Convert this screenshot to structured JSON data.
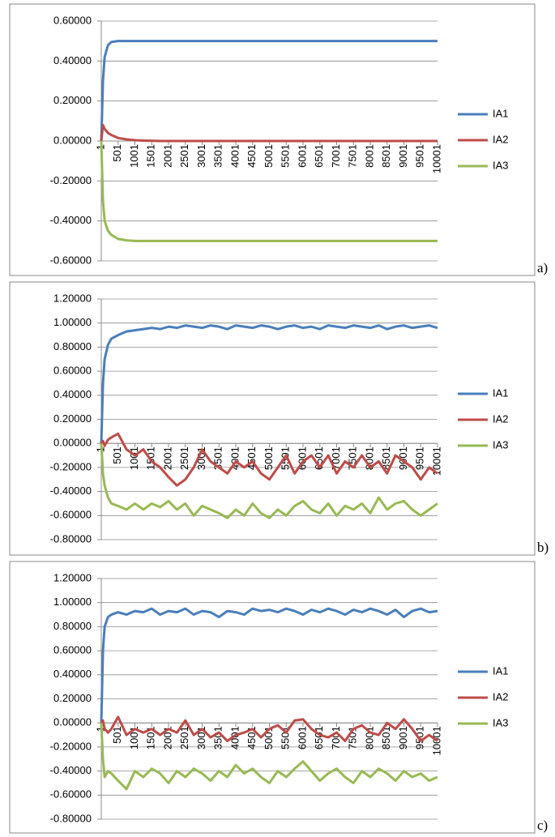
{
  "chart_data": [
    {
      "type": "line",
      "panel_label": "a)",
      "x": [
        1,
        51,
        101,
        201,
        301,
        501,
        751,
        1001,
        1251,
        1501,
        1751,
        2001,
        2251,
        2501,
        2751,
        3001,
        3251,
        3501,
        3751,
        4001,
        4251,
        4501,
        4751,
        5001,
        5251,
        5501,
        5751,
        6001,
        6251,
        6501,
        6751,
        7001,
        7251,
        7501,
        7751,
        8001,
        8251,
        8501,
        8751,
        9001,
        9251,
        9501,
        9751,
        10001
      ],
      "xlim": [
        1,
        10001
      ],
      "xticks": [
        1,
        501,
        1001,
        1501,
        2001,
        2501,
        3001,
        3501,
        4001,
        4501,
        5001,
        5501,
        6001,
        6501,
        7001,
        7501,
        8001,
        8501,
        9001,
        9501,
        10001
      ],
      "ylim": [
        -0.6,
        0.6
      ],
      "yticks": [
        {
          "value": -0.6,
          "label": "-0.60000"
        },
        {
          "value": -0.4,
          "label": "-0.40000"
        },
        {
          "value": -0.2,
          "label": "-0.20000"
        },
        {
          "value": 0,
          "label": "0.00000"
        },
        {
          "value": 0.2,
          "label": "0.20000"
        },
        {
          "value": 0.4,
          "label": "0.40000"
        },
        {
          "value": 0.6,
          "label": "0.60000"
        }
      ],
      "grid": true,
      "series": [
        {
          "name": "IA1",
          "color": "#4a7ebb",
          "values": [
            0,
            0.3,
            0.42,
            0.48,
            0.495,
            0.5,
            0.5,
            0.5,
            0.5,
            0.5,
            0.5,
            0.5,
            0.5,
            0.5,
            0.5,
            0.5,
            0.5,
            0.5,
            0.5,
            0.5,
            0.5,
            0.5,
            0.5,
            0.5,
            0.5,
            0.5,
            0.5,
            0.5,
            0.5,
            0.5,
            0.5,
            0.5,
            0.5,
            0.5,
            0.5,
            0.5,
            0.5,
            0.5,
            0.5,
            0.5,
            0.5,
            0.5,
            0.5,
            0.5
          ]
        },
        {
          "name": "IA2",
          "color": "#be4b48",
          "values": [
            0,
            0.08,
            0.06,
            0.04,
            0.03,
            0.015,
            0.008,
            0.004,
            0.002,
            0.001,
            0,
            0,
            0,
            0,
            0,
            0,
            0,
            0,
            0,
            0,
            0,
            0,
            0,
            0,
            0,
            0,
            0,
            0,
            0,
            0,
            0,
            0,
            0,
            0,
            0,
            0,
            0,
            0,
            0,
            0,
            0,
            0,
            0,
            0
          ]
        },
        {
          "name": "IA3",
          "color": "#98b954",
          "values": [
            0,
            -0.3,
            -0.4,
            -0.45,
            -0.47,
            -0.49,
            -0.497,
            -0.5,
            -0.5,
            -0.5,
            -0.5,
            -0.5,
            -0.5,
            -0.5,
            -0.5,
            -0.5,
            -0.5,
            -0.5,
            -0.5,
            -0.5,
            -0.5,
            -0.5,
            -0.5,
            -0.5,
            -0.5,
            -0.5,
            -0.5,
            -0.5,
            -0.5,
            -0.5,
            -0.5,
            -0.5,
            -0.5,
            -0.5,
            -0.5,
            -0.5,
            -0.5,
            -0.5,
            -0.5,
            -0.5,
            -0.5,
            -0.5,
            -0.5,
            -0.5
          ]
        }
      ]
    },
    {
      "type": "line",
      "panel_label": "b)",
      "x": [
        1,
        51,
        101,
        201,
        301,
        501,
        751,
        1001,
        1251,
        1501,
        1751,
        2001,
        2251,
        2501,
        2751,
        3001,
        3251,
        3501,
        3751,
        4001,
        4251,
        4501,
        4751,
        5001,
        5251,
        5501,
        5751,
        6001,
        6251,
        6501,
        6751,
        7001,
        7251,
        7501,
        7751,
        8001,
        8251,
        8501,
        8751,
        9001,
        9251,
        9501,
        9751,
        10001
      ],
      "xlim": [
        1,
        10001
      ],
      "xticks": [
        1,
        501,
        1001,
        1501,
        2001,
        2501,
        3001,
        3501,
        4001,
        4501,
        5001,
        5501,
        6001,
        6501,
        7001,
        7501,
        8001,
        8501,
        9001,
        9501,
        10001
      ],
      "ylim": [
        -0.8,
        1.2
      ],
      "yticks": [
        {
          "value": -0.8,
          "label": "-0.80000"
        },
        {
          "value": -0.6,
          "label": "-0.60000"
        },
        {
          "value": -0.4,
          "label": "-0.40000"
        },
        {
          "value": -0.2,
          "label": "-0.20000"
        },
        {
          "value": 0,
          "label": "0.00000"
        },
        {
          "value": 0.2,
          "label": "0.20000"
        },
        {
          "value": 0.4,
          "label": "0.40000"
        },
        {
          "value": 0.6,
          "label": "0.60000"
        },
        {
          "value": 0.8,
          "label": "0.80000"
        },
        {
          "value": 1,
          "label": "1.00000"
        },
        {
          "value": 1.2,
          "label": "1.20000"
        }
      ],
      "grid": true,
      "series": [
        {
          "name": "IA1",
          "color": "#4a7ebb",
          "values": [
            0,
            0.5,
            0.7,
            0.82,
            0.87,
            0.9,
            0.93,
            0.94,
            0.95,
            0.96,
            0.95,
            0.97,
            0.96,
            0.98,
            0.97,
            0.96,
            0.98,
            0.97,
            0.95,
            0.98,
            0.97,
            0.96,
            0.98,
            0.97,
            0.95,
            0.97,
            0.98,
            0.96,
            0.97,
            0.95,
            0.98,
            0.97,
            0.96,
            0.98,
            0.97,
            0.96,
            0.98,
            0.95,
            0.97,
            0.98,
            0.96,
            0.97,
            0.98,
            0.96
          ]
        },
        {
          "name": "IA2",
          "color": "#be4b48",
          "values": [
            0,
            0.02,
            -0.02,
            0.03,
            0.05,
            0.08,
            -0.05,
            -0.1,
            -0.05,
            -0.15,
            -0.2,
            -0.28,
            -0.35,
            -0.3,
            -0.2,
            -0.05,
            -0.15,
            -0.2,
            -0.25,
            -0.15,
            -0.2,
            -0.15,
            -0.25,
            -0.3,
            -0.2,
            -0.1,
            -0.25,
            -0.15,
            -0.1,
            -0.2,
            -0.1,
            -0.25,
            -0.15,
            -0.2,
            -0.1,
            -0.2,
            -0.15,
            -0.25,
            -0.1,
            -0.15,
            -0.2,
            -0.3,
            -0.2,
            -0.25
          ]
        },
        {
          "name": "IA3",
          "color": "#98b954",
          "values": [
            0,
            -0.25,
            -0.35,
            -0.45,
            -0.5,
            -0.52,
            -0.55,
            -0.5,
            -0.55,
            -0.5,
            -0.53,
            -0.48,
            -0.55,
            -0.5,
            -0.6,
            -0.52,
            -0.55,
            -0.58,
            -0.62,
            -0.55,
            -0.6,
            -0.5,
            -0.58,
            -0.62,
            -0.55,
            -0.6,
            -0.52,
            -0.48,
            -0.55,
            -0.58,
            -0.5,
            -0.6,
            -0.52,
            -0.55,
            -0.5,
            -0.58,
            -0.45,
            -0.55,
            -0.5,
            -0.48,
            -0.55,
            -0.6,
            -0.55,
            -0.5
          ]
        }
      ]
    },
    {
      "type": "line",
      "panel_label": "c)",
      "x": [
        1,
        51,
        101,
        201,
        301,
        501,
        751,
        1001,
        1251,
        1501,
        1751,
        2001,
        2251,
        2501,
        2751,
        3001,
        3251,
        3501,
        3751,
        4001,
        4251,
        4501,
        4751,
        5001,
        5251,
        5501,
        5751,
        6001,
        6251,
        6501,
        6751,
        7001,
        7251,
        7501,
        7751,
        8001,
        8251,
        8501,
        8751,
        9001,
        9251,
        9501,
        9751,
        10001
      ],
      "xlim": [
        1,
        10001
      ],
      "xticks": [
        1,
        501,
        1001,
        1501,
        2001,
        2501,
        3001,
        3501,
        4001,
        4501,
        5001,
        5501,
        6001,
        6501,
        7001,
        7501,
        8001,
        8501,
        9001,
        9501,
        10001
      ],
      "ylim": [
        -0.8,
        1.2
      ],
      "yticks": [
        {
          "value": -0.8,
          "label": "-0.80000"
        },
        {
          "value": -0.6,
          "label": "-0.60000"
        },
        {
          "value": -0.4,
          "label": "-0.40000"
        },
        {
          "value": -0.2,
          "label": "-0.20000"
        },
        {
          "value": 0,
          "label": "0.00000"
        },
        {
          "value": 0.2,
          "label": "0.20000"
        },
        {
          "value": 0.4,
          "label": "0.40000"
        },
        {
          "value": 0.6,
          "label": "0.60000"
        },
        {
          "value": 0.8,
          "label": "0.80000"
        },
        {
          "value": 1,
          "label": "1.00000"
        },
        {
          "value": 1.2,
          "label": "1.20000"
        }
      ],
      "grid": true,
      "series": [
        {
          "name": "IA1",
          "color": "#4a7ebb",
          "values": [
            0,
            0.6,
            0.8,
            0.88,
            0.9,
            0.92,
            0.9,
            0.93,
            0.92,
            0.95,
            0.9,
            0.93,
            0.92,
            0.95,
            0.9,
            0.93,
            0.92,
            0.88,
            0.93,
            0.92,
            0.9,
            0.95,
            0.93,
            0.94,
            0.92,
            0.95,
            0.93,
            0.9,
            0.94,
            0.92,
            0.95,
            0.93,
            0.9,
            0.94,
            0.92,
            0.95,
            0.93,
            0.9,
            0.94,
            0.88,
            0.93,
            0.95,
            0.92,
            0.93
          ]
        },
        {
          "name": "IA2",
          "color": "#be4b48",
          "values": [
            0,
            0.02,
            -0.05,
            -0.08,
            -0.05,
            0.05,
            -0.1,
            -0.05,
            -0.08,
            -0.05,
            -0.1,
            -0.05,
            -0.08,
            0.02,
            -0.1,
            -0.05,
            -0.12,
            -0.08,
            -0.15,
            -0.1,
            -0.08,
            -0.05,
            -0.12,
            -0.05,
            -0.02,
            -0.08,
            0.02,
            0.03,
            -0.05,
            -0.1,
            -0.12,
            -0.08,
            -0.15,
            -0.05,
            -0.02,
            -0.08,
            -0.1,
            0,
            -0.05,
            0.03,
            -0.05,
            -0.15,
            -0.1,
            -0.15
          ]
        },
        {
          "name": "IA3",
          "color": "#98b954",
          "values": [
            0,
            -0.3,
            -0.45,
            -0.4,
            -0.42,
            -0.48,
            -0.55,
            -0.4,
            -0.45,
            -0.38,
            -0.42,
            -0.5,
            -0.4,
            -0.45,
            -0.38,
            -0.42,
            -0.48,
            -0.4,
            -0.45,
            -0.35,
            -0.42,
            -0.38,
            -0.45,
            -0.5,
            -0.4,
            -0.45,
            -0.38,
            -0.32,
            -0.4,
            -0.48,
            -0.42,
            -0.38,
            -0.45,
            -0.5,
            -0.4,
            -0.45,
            -0.38,
            -0.42,
            -0.48,
            -0.4,
            -0.45,
            -0.42,
            -0.48,
            -0.45
          ]
        }
      ]
    }
  ]
}
